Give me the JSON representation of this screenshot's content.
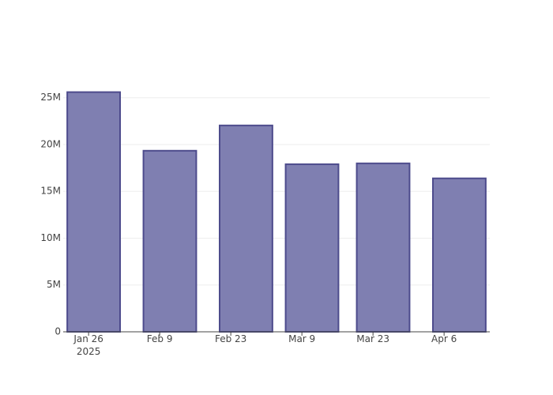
{
  "chart_data": {
    "type": "bar",
    "x": [
      "2025-01-27",
      "2025-02-11",
      "2025-02-26",
      "2025-03-11",
      "2025-03-25",
      "2025-04-09"
    ],
    "values": [
      25600000,
      19340000,
      22040000,
      17900000,
      17990000,
      16390000
    ],
    "color": "#7f7fb1",
    "edgecolor": "#4d4b8c",
    "xlim": [
      "2025-01-21",
      "2025-04-15"
    ],
    "xticks": [
      {
        "value": "2025-01-26",
        "label": "Jan 26\n2025"
      },
      {
        "value": "2025-02-09",
        "label": "Feb 9"
      },
      {
        "value": "2025-02-23",
        "label": "Feb 23"
      },
      {
        "value": "2025-03-09",
        "label": "Mar 9"
      },
      {
        "value": "2025-03-23",
        "label": "Mar 23"
      },
      {
        "value": "2025-04-06",
        "label": "Apr 6"
      }
    ],
    "ylim": [
      0,
      27000000
    ],
    "yticks": [
      0,
      {
        "value": 5000000,
        "label": "5M"
      },
      {
        "value": 10000000,
        "label": "10M"
      },
      {
        "value": 15000000,
        "label": "15M"
      },
      {
        "value": 20000000,
        "label": "20M"
      },
      {
        "value": 25000000,
        "label": "25M"
      }
    ],
    "grid": true
  }
}
